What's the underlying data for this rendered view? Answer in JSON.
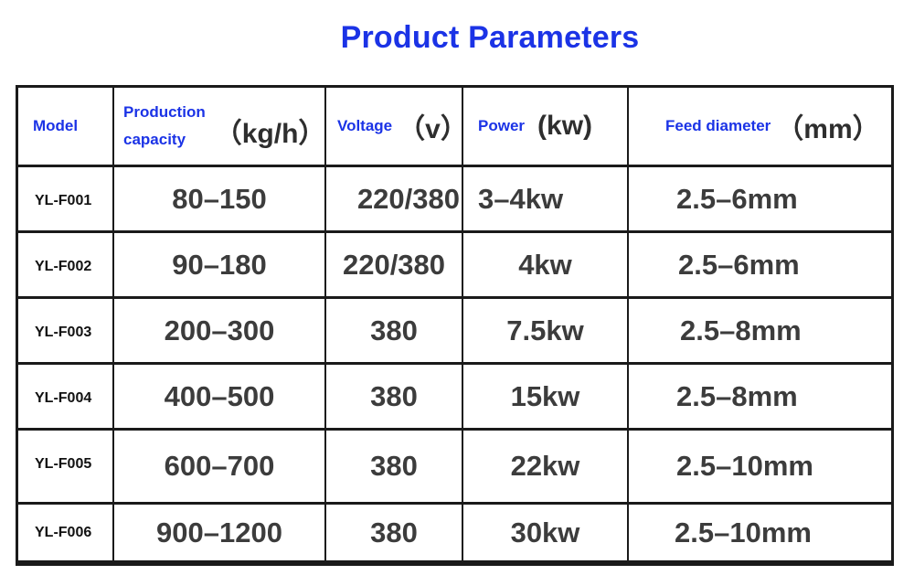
{
  "title": "Product Parameters",
  "table": {
    "headers": {
      "model": "Model",
      "capacity_line1": "Production",
      "capacity_line2": "capacity",
      "capacity_unit": "（kg/h）",
      "voltage": "Voltage",
      "voltage_unit": "（v）",
      "power": "Power",
      "power_unit": "(kw)",
      "feed_diameter": "Feed diameter",
      "feed_diameter_unit": "（mm）"
    },
    "rows": [
      {
        "model": "YL-F001",
        "capacity": "80–150",
        "voltage": "220/380",
        "power": "3–4kw",
        "feed": "2.5–6mm"
      },
      {
        "model": "YL-F002",
        "capacity": "90–180",
        "voltage": "220/380",
        "power": "4kw",
        "feed": "2.5–6mm"
      },
      {
        "model": "YL-F003",
        "capacity": "200–300",
        "voltage": "380",
        "power": "7.5kw",
        "feed": "2.5–8mm"
      },
      {
        "model": "YL-F004",
        "capacity": "400–500",
        "voltage": "380",
        "power": "15kw",
        "feed": "2.5–8mm"
      },
      {
        "model": "YL-F005",
        "capacity": "600–700",
        "voltage": "380",
        "power": "22kw",
        "feed": "2.5–10mm"
      },
      {
        "model": "YL-F006",
        "capacity": "900–1200",
        "voltage": "380",
        "power": "30kw",
        "feed": "2.5–10mm"
      }
    ]
  },
  "colors": {
    "title": "#1b33e6",
    "header_text": "#1b33e6",
    "cell_text": "#3c3c3c",
    "border": "#1a1a1a"
  }
}
